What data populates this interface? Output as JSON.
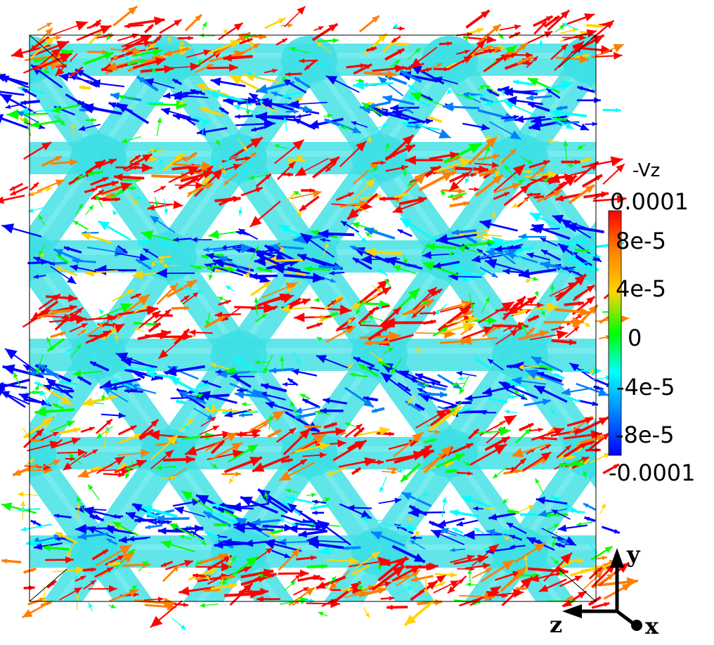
{
  "colorbar": {
    "title": "-Vz",
    "ticks": [
      "0.0001",
      "8e-5",
      "4e-5",
      "0",
      "-4e-5",
      "-8e-5",
      "-0.0001"
    ],
    "max": 0.0001,
    "min": -0.0001,
    "colormap": [
      "#ff0000",
      "#ff7f00",
      "#ffd400",
      "#00ff00",
      "#00ffff",
      "#0080ff",
      "#0000ff"
    ]
  },
  "axes": {
    "y_label": "y",
    "z_label": "z",
    "x_label": "x"
  },
  "scene": {
    "surface_color": "#3ee0e4",
    "box_color": "#000000"
  }
}
